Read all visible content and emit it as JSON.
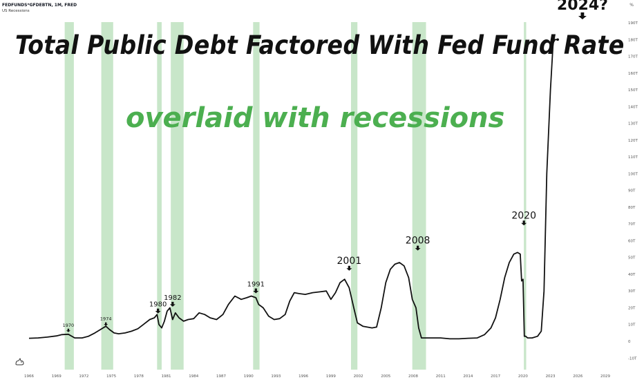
{
  "header": {
    "symbol": "FEDFUNDS*GFDEBTN, 1M, FRED",
    "indicator": "US Recessions",
    "scale_unit": "%"
  },
  "annotations_text": {
    "title": "Total Public Debt Factored With Fed Fund Rate",
    "subtitle": "overlaid with recessions"
  },
  "colors": {
    "line": "#111111",
    "recession": "#c8e6c9",
    "subtitle": "#4caf50",
    "axis_text": "#555555"
  },
  "chart_data": {
    "type": "line",
    "title": "Total Public Debt Factored With Fed Fund Rate",
    "subtitle": "overlaid with recessions",
    "xlabel": "",
    "ylabel": "",
    "x_ticks": [
      "1966",
      "1969",
      "1972",
      "1975",
      "1978",
      "1981",
      "1984",
      "1987",
      "1990",
      "1993",
      "1996",
      "1999",
      "2002",
      "2005",
      "2008",
      "2011",
      "2014",
      "2017",
      "2020",
      "2023",
      "2026",
      "2029"
    ],
    "y_ticks": [
      "-10T",
      "0",
      "10T",
      "20T",
      "30T",
      "40T",
      "50T",
      "60T",
      "70T",
      "80T",
      "90T",
      "100T",
      "110T",
      "120T",
      "130T",
      "140T",
      "150T",
      "160T",
      "170T",
      "180T",
      "190T"
    ],
    "xlim": [
      1966,
      2029.5
    ],
    "ylim": [
      -12,
      194
    ],
    "grid": false,
    "recessions": [
      [
        1969.9,
        1970.9
      ],
      [
        1973.9,
        1975.2
      ],
      [
        1980.0,
        1980.5
      ],
      [
        1981.5,
        1982.9
      ],
      [
        1990.5,
        1991.2
      ],
      [
        2001.2,
        2001.9
      ],
      [
        2007.9,
        2009.4
      ],
      [
        2020.1,
        2020.35
      ]
    ],
    "series": [
      {
        "x": [
          1966.0,
          1967.0,
          1968.0,
          1969.0,
          1969.6,
          1970.3,
          1971.0,
          1971.8,
          1972.5,
          1973.2,
          1973.8,
          1974.4,
          1974.8,
          1975.3,
          1975.8,
          1976.5,
          1977.2,
          1977.9,
          1978.5,
          1979.2,
          1979.7,
          1980.0,
          1980.2,
          1980.5,
          1980.8,
          1981.1,
          1981.4,
          1981.7,
          1982.0,
          1982.4,
          1982.9,
          1983.4,
          1984.0,
          1984.6,
          1985.2,
          1985.8,
          1986.5,
          1987.2,
          1987.8,
          1988.5,
          1989.2,
          1989.8,
          1990.3,
          1990.8,
          1991.1,
          1991.6,
          1992.2,
          1992.8,
          1993.4,
          1994.0,
          1994.5,
          1995.0,
          1995.5,
          1996.2,
          1997.0,
          1997.8,
          1998.5,
          1999.0,
          1999.5,
          2000.0,
          2000.5,
          2001.0,
          2001.5,
          2001.9,
          2002.5,
          2003.5,
          2004.0,
          2004.5,
          2005.0,
          2005.5,
          2006.0,
          2006.5,
          2007.0,
          2007.5,
          2007.9,
          2008.3,
          2008.6,
          2008.9,
          2009.3,
          2010.0,
          2011.0,
          2012.0,
          2013.0,
          2014.0,
          2015.0,
          2015.8,
          2016.5,
          2017.0,
          2017.5,
          2018.0,
          2018.5,
          2019.0,
          2019.4,
          2019.7,
          2019.85,
          2020.0,
          2020.15,
          2020.3,
          2020.5,
          2021.0,
          2021.6,
          2022.0,
          2022.3,
          2022.6,
          2023.0,
          2023.3,
          2023.5,
          2023.8
        ],
        "values": [
          1.8,
          2.0,
          2.5,
          3.2,
          4.0,
          4.2,
          2.0,
          2.0,
          3.0,
          5.0,
          7.0,
          9.0,
          7.0,
          5.0,
          4.5,
          5.0,
          6.0,
          7.5,
          10.0,
          13.0,
          14.0,
          16.0,
          10.0,
          8.0,
          12.0,
          18.0,
          20.0,
          13.0,
          17.0,
          14.0,
          12.0,
          13.0,
          13.5,
          17.0,
          16.0,
          14.0,
          13.0,
          16.0,
          22.0,
          27.0,
          25.0,
          26.0,
          27.0,
          26.0,
          22.0,
          20.0,
          15.0,
          13.0,
          13.5,
          16.0,
          24.0,
          29.0,
          28.5,
          28.0,
          29.0,
          29.5,
          30.0,
          25.0,
          29.0,
          35.0,
          37.0,
          32.0,
          20.0,
          11.0,
          9.0,
          8.0,
          8.5,
          20.0,
          35.0,
          43.0,
          46.0,
          47.0,
          45.0,
          38.0,
          25.0,
          20.0,
          8.0,
          2.0,
          2.0,
          2.0,
          2.0,
          1.5,
          1.5,
          1.8,
          2.0,
          4.0,
          8.0,
          14.0,
          25.0,
          38.0,
          47.0,
          52.0,
          53.0,
          52.0,
          36.0,
          37.0,
          3.0,
          3.0,
          2.0,
          2.0,
          3.0,
          6.0,
          30.0,
          100.0,
          150.0,
          178.0,
          180.0,
          180.0
        ]
      }
    ],
    "labels": [
      {
        "text": "1970",
        "x": 1970.3,
        "y": 4.2
      },
      {
        "text": "1974",
        "x": 1974.4,
        "y": 8.0
      },
      {
        "text": "1980",
        "x": 1980.1,
        "y": 15.0
      },
      {
        "text": "1982",
        "x": 1981.7,
        "y": 19.0
      },
      {
        "text": "1991",
        "x": 1990.8,
        "y": 27.0
      },
      {
        "text": "2001",
        "x": 2001.0,
        "y": 38.0
      },
      {
        "text": "2008",
        "x": 2008.5,
        "y": 50.0
      },
      {
        "text": "2020",
        "x": 2020.1,
        "y": 65.0
      },
      {
        "text": "2024?",
        "x": 2026.5,
        "y": 183.0
      }
    ]
  }
}
